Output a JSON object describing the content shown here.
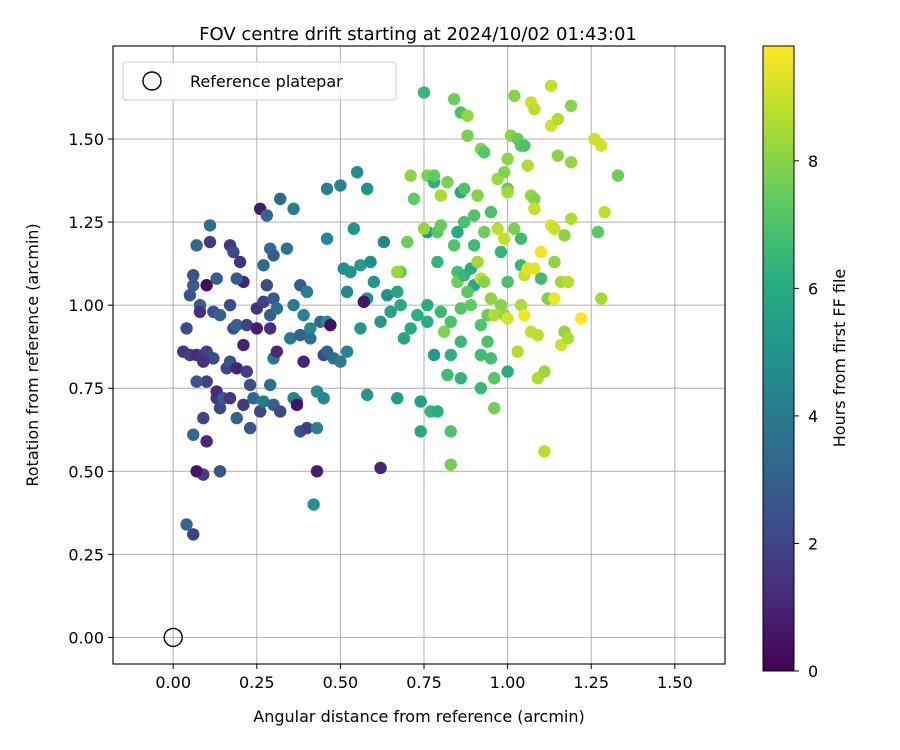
{
  "chart_data": {
    "type": "scatter",
    "title": "FOV centre drift starting at 2024/10/02 01:43:01",
    "xlabel": "Angular distance from reference (arcmin)",
    "ylabel": "Rotation from reference (arcmin)",
    "xlim": [
      -0.18,
      1.65
    ],
    "ylim": [
      -0.08,
      1.78
    ],
    "xticks": [
      "0.00",
      "0.25",
      "0.50",
      "0.75",
      "1.00",
      "1.25",
      "1.50"
    ],
    "yticks": [
      "0.00",
      "0.25",
      "0.50",
      "0.75",
      "1.00",
      "1.25",
      "1.50"
    ],
    "grid": true,
    "legend": {
      "position": "top-left",
      "label": "Reference platepar"
    },
    "reference_point": [
      0,
      0
    ],
    "colorbar": {
      "label": "Hours from first FF file",
      "colormap": "viridis",
      "range": [
        0,
        9.8
      ],
      "ticks": [
        "0",
        "2",
        "4",
        "6",
        "8"
      ]
    },
    "points": [
      [
        0.03,
        0.86,
        1.6
      ],
      [
        0.05,
        0.85,
        1.8
      ],
      [
        0.04,
        0.93,
        2.2
      ],
      [
        0.07,
        0.85,
        1.2
      ],
      [
        0.09,
        0.85,
        1.5
      ],
      [
        0.1,
        0.86,
        2.0
      ],
      [
        0.12,
        0.84,
        2.3
      ],
      [
        0.05,
        1.03,
        2.6
      ],
      [
        0.06,
        1.06,
        2.8
      ],
      [
        0.06,
        1.09,
        2.5
      ],
      [
        0.08,
        1.0,
        3.0
      ],
      [
        0.07,
        1.18,
        3.2
      ],
      [
        0.08,
        0.98,
        1.3
      ],
      [
        0.1,
        1.06,
        0.3
      ],
      [
        0.11,
        1.19,
        1.7
      ],
      [
        0.11,
        1.24,
        3.5
      ],
      [
        0.13,
        1.08,
        2.9
      ],
      [
        0.12,
        0.98,
        2.4
      ],
      [
        0.14,
        0.97,
        3.1
      ],
      [
        0.09,
        0.83,
        1.4
      ],
      [
        0.1,
        0.77,
        1.9
      ],
      [
        0.07,
        0.77,
        2.7
      ],
      [
        0.06,
        0.61,
        3.3
      ],
      [
        0.09,
        0.66,
        2.0
      ],
      [
        0.09,
        0.49,
        1.8
      ],
      [
        0.07,
        0.5,
        0.6
      ],
      [
        0.1,
        0.59,
        1.1
      ],
      [
        0.13,
        0.72,
        1.6
      ],
      [
        0.14,
        0.69,
        2.2
      ],
      [
        0.13,
        0.74,
        1.2
      ],
      [
        0.14,
        0.5,
        2.6
      ],
      [
        0.04,
        0.34,
        3.2
      ],
      [
        0.06,
        0.31,
        1.9
      ],
      [
        0.16,
        0.81,
        2.1
      ],
      [
        0.17,
        0.83,
        2.5
      ],
      [
        0.15,
        0.72,
        2.8
      ],
      [
        0.19,
        0.66,
        3.1
      ],
      [
        0.17,
        0.72,
        1.5
      ],
      [
        0.19,
        0.81,
        1.0
      ],
      [
        0.18,
        0.93,
        2.4
      ],
      [
        0.21,
        0.88,
        0.9
      ],
      [
        0.19,
        0.94,
        3.0
      ],
      [
        0.17,
        1.18,
        1.6
      ],
      [
        0.18,
        1.16,
        2.2
      ],
      [
        0.2,
        1.13,
        1.4
      ],
      [
        0.21,
        1.07,
        1.0
      ],
      [
        0.17,
        1.0,
        2.3
      ],
      [
        0.19,
        1.08,
        2.8
      ],
      [
        0.22,
        0.94,
        2.0
      ],
      [
        0.21,
        0.7,
        1.7
      ],
      [
        0.23,
        0.76,
        2.4
      ],
      [
        0.23,
        0.63,
        2.6
      ],
      [
        0.24,
        0.72,
        3.3
      ],
      [
        0.22,
        0.8,
        1.8
      ],
      [
        0.26,
        0.68,
        2.1
      ],
      [
        0.25,
        0.93,
        0.8
      ],
      [
        0.25,
        0.99,
        1.4
      ],
      [
        0.27,
        1.01,
        1.9
      ],
      [
        0.26,
        1.29,
        0.7
      ],
      [
        0.28,
        1.27,
        3.2
      ],
      [
        0.27,
        1.12,
        3.4
      ],
      [
        0.29,
        1.17,
        3.6
      ],
      [
        0.3,
        1.15,
        2.9
      ],
      [
        0.28,
        1.06,
        2.3
      ],
      [
        0.3,
        1.02,
        2.7
      ],
      [
        0.29,
        0.97,
        3.0
      ],
      [
        0.29,
        0.93,
        1.3
      ],
      [
        0.31,
        0.99,
        3.5
      ],
      [
        0.3,
        0.84,
        3.8
      ],
      [
        0.31,
        0.86,
        1.1
      ],
      [
        0.29,
        0.76,
        3.6
      ],
      [
        0.27,
        0.71,
        4.0
      ],
      [
        0.3,
        0.7,
        3.1
      ],
      [
        0.32,
        0.68,
        2.2
      ],
      [
        0.32,
        1.32,
        3.4
      ],
      [
        0.34,
        1.17,
        3.8
      ],
      [
        0.36,
        1.29,
        4.2
      ],
      [
        0.35,
        0.9,
        3.9
      ],
      [
        0.38,
        1.06,
        2.8
      ],
      [
        0.36,
        1.0,
        4.1
      ],
      [
        0.38,
        0.91,
        3.0
      ],
      [
        0.39,
        0.97,
        4.4
      ],
      [
        0.37,
        0.71,
        3.5
      ],
      [
        0.36,
        0.72,
        4.3
      ],
      [
        0.37,
        0.7,
        0.5
      ],
      [
        0.38,
        0.62,
        2.6
      ],
      [
        0.4,
        0.63,
        1.8
      ],
      [
        0.39,
        0.83,
        1.0
      ],
      [
        0.41,
        0.93,
        4.6
      ],
      [
        0.4,
        1.04,
        4.2
      ],
      [
        0.41,
        0.9,
        3.7
      ],
      [
        0.43,
        0.63,
        4.3
      ],
      [
        0.43,
        0.74,
        4.7
      ],
      [
        0.45,
        0.72,
        4.5
      ],
      [
        0.42,
        0.4,
        5.0
      ],
      [
        0.43,
        0.5,
        0.8
      ],
      [
        0.44,
        0.95,
        3.3
      ],
      [
        0.45,
        0.85,
        2.2
      ],
      [
        0.46,
        0.86,
        3.0
      ],
      [
        0.46,
        0.95,
        4.8
      ],
      [
        0.47,
        0.94,
        0.4
      ],
      [
        0.46,
        1.2,
        4.6
      ],
      [
        0.46,
        1.35,
        4.3
      ],
      [
        0.48,
        0.84,
        3.6
      ],
      [
        0.5,
        0.83,
        4.0
      ],
      [
        0.51,
        1.11,
        4.8
      ],
      [
        0.5,
        1.36,
        4.4
      ],
      [
        0.52,
        1.04,
        4.6
      ],
      [
        0.53,
        1.1,
        5.0
      ],
      [
        0.52,
        0.86,
        4.5
      ],
      [
        0.54,
        1.23,
        5.0
      ],
      [
        0.55,
        1.4,
        4.7
      ],
      [
        0.56,
        0.93,
        5.2
      ],
      [
        0.56,
        1.12,
        5.4
      ],
      [
        0.58,
        1.35,
        4.9
      ],
      [
        0.58,
        1.02,
        5.0
      ],
      [
        0.59,
        1.13,
        4.8
      ],
      [
        0.6,
        1.07,
        5.1
      ],
      [
        0.58,
        0.73,
        5.2
      ],
      [
        0.57,
        1.01,
        0.6
      ],
      [
        0.62,
        0.51,
        1.0
      ],
      [
        0.62,
        0.95,
        5.3
      ],
      [
        0.63,
        1.19,
        4.5
      ],
      [
        0.64,
        1.03,
        5.0
      ],
      [
        0.65,
        0.98,
        5.6
      ],
      [
        0.67,
        0.72,
        5.4
      ],
      [
        0.67,
        1.04,
        5.8
      ],
      [
        0.68,
        1.0,
        6.0
      ],
      [
        0.68,
        1.1,
        7.3
      ],
      [
        0.69,
        0.9,
        5.7
      ],
      [
        0.7,
        1.19,
        7.6
      ],
      [
        0.71,
        0.93,
        5.9
      ],
      [
        0.72,
        1.32,
        7.4
      ],
      [
        0.73,
        0.97,
        6.2
      ],
      [
        0.74,
        0.62,
        5.9
      ],
      [
        0.74,
        0.71,
        5.5
      ],
      [
        0.75,
        1.64,
        6.5
      ],
      [
        0.76,
        1.0,
        6.0
      ],
      [
        0.76,
        1.22,
        5.1
      ],
      [
        0.76,
        0.95,
        6.1
      ],
      [
        0.76,
        1.39,
        7.8
      ],
      [
        0.77,
        0.68,
        6.5
      ],
      [
        0.78,
        0.85,
        5.3
      ],
      [
        0.78,
        1.37,
        6.3
      ],
      [
        0.79,
        0.68,
        6.0
      ],
      [
        0.79,
        1.13,
        6.4
      ],
      [
        0.78,
        1.39,
        7.4
      ],
      [
        0.79,
        1.22,
        7.2
      ],
      [
        0.8,
        0.98,
        6.6
      ],
      [
        0.8,
        1.24,
        7.5
      ],
      [
        0.81,
        0.92,
        7.9
      ],
      [
        0.82,
        1.37,
        7.8
      ],
      [
        0.82,
        0.79,
        6.7
      ],
      [
        0.83,
        0.95,
        7.0
      ],
      [
        0.83,
        0.85,
        6.2
      ],
      [
        0.83,
        0.62,
        7.0
      ],
      [
        0.83,
        0.52,
        7.7
      ],
      [
        0.84,
        1.62,
        7.6
      ],
      [
        0.85,
        1.22,
        6.1
      ],
      [
        0.85,
        1.1,
        6.8
      ],
      [
        0.85,
        1.07,
        7.6
      ],
      [
        0.86,
        1.34,
        5.8
      ],
      [
        0.86,
        0.99,
        7.2
      ],
      [
        0.86,
        0.89,
        6.6
      ],
      [
        0.86,
        0.78,
        6.4
      ],
      [
        0.86,
        1.58,
        6.8
      ],
      [
        0.87,
        1.35,
        7.0
      ],
      [
        0.87,
        1.25,
        6.9
      ],
      [
        0.87,
        1.09,
        6.5
      ],
      [
        0.88,
        1.57,
        8.2
      ],
      [
        0.88,
        1.51,
        7.8
      ],
      [
        0.89,
        1.11,
        6.0
      ],
      [
        0.89,
        1.0,
        7.4
      ],
      [
        0.9,
        1.27,
        7.1
      ],
      [
        0.9,
        1.18,
        6.7
      ],
      [
        0.9,
        1.06,
        5.9
      ],
      [
        0.91,
        1.33,
        7.5
      ],
      [
        0.91,
        1.13,
        8.4
      ],
      [
        0.92,
        0.94,
        7.1
      ],
      [
        0.92,
        0.85,
        6.7
      ],
      [
        0.92,
        0.75,
        6.6
      ],
      [
        0.92,
        1.08,
        8.9
      ],
      [
        0.92,
        1.47,
        7.9
      ],
      [
        0.93,
        1.46,
        7.2
      ],
      [
        0.93,
        1.22,
        7.6
      ],
      [
        0.93,
        1.07,
        8.0
      ],
      [
        0.94,
        0.97,
        7.5
      ],
      [
        0.94,
        0.89,
        7.0
      ],
      [
        0.95,
        1.28,
        6.9
      ],
      [
        0.95,
        1.02,
        8.1
      ],
      [
        0.95,
        0.84,
        6.8
      ],
      [
        0.96,
        0.78,
        7.2
      ],
      [
        0.96,
        0.69,
        7.7
      ],
      [
        0.96,
        0.97,
        8.6
      ],
      [
        0.97,
        1.38,
        8.3
      ],
      [
        0.97,
        1.23,
        8.8
      ],
      [
        0.98,
        1.16,
        6.4
      ],
      [
        0.98,
        1.0,
        8.0
      ],
      [
        0.99,
        1.4,
        7.9
      ],
      [
        0.99,
        1.2,
        8.9
      ],
      [
        0.99,
        0.97,
        8.2
      ],
      [
        1.0,
        1.35,
        7.3
      ],
      [
        1.0,
        1.44,
        8.1
      ],
      [
        1.0,
        1.34,
        8.4
      ],
      [
        1.0,
        1.07,
        6.9
      ],
      [
        1.0,
        0.8,
        6.1
      ],
      [
        1.0,
        0.96,
        9.2
      ],
      [
        1.01,
        1.51,
        8.0
      ],
      [
        1.02,
        1.23,
        7.8
      ],
      [
        1.02,
        1.63,
        8.0
      ],
      [
        1.03,
        1.5,
        7.6
      ],
      [
        1.03,
        0.86,
        8.7
      ],
      [
        1.04,
        1.48,
        7.3
      ],
      [
        1.04,
        1.2,
        6.7
      ],
      [
        1.04,
        1.12,
        6.5
      ],
      [
        1.04,
        1.0,
        8.5
      ],
      [
        1.05,
        0.97,
        9.6
      ],
      [
        1.05,
        1.09,
        9.0
      ],
      [
        1.05,
        1.48,
        7.0
      ],
      [
        1.06,
        1.42,
        8.6
      ],
      [
        1.06,
        1.11,
        9.3
      ],
      [
        1.07,
        1.33,
        8.2
      ],
      [
        1.07,
        1.61,
        9.1
      ],
      [
        1.07,
        0.92,
        8.9
      ],
      [
        1.08,
        1.32,
        7.9
      ],
      [
        1.08,
        1.59,
        8.8
      ],
      [
        1.08,
        1.11,
        9.4
      ],
      [
        1.08,
        1.29,
        9.0
      ],
      [
        1.09,
        0.91,
        8.8
      ],
      [
        1.09,
        0.78,
        8.6
      ],
      [
        1.1,
        1.16,
        9.6
      ],
      [
        1.1,
        1.08,
        6.7
      ],
      [
        1.11,
        0.56,
        8.8
      ],
      [
        1.11,
        0.8,
        8.3
      ],
      [
        1.12,
        1.02,
        7.8
      ],
      [
        1.13,
        1.66,
        8.9
      ],
      [
        1.13,
        1.54,
        9.1
      ],
      [
        1.13,
        1.24,
        9.3
      ],
      [
        1.14,
        1.23,
        9.0
      ],
      [
        1.14,
        1.02,
        9.6
      ],
      [
        1.14,
        1.13,
        8.1
      ],
      [
        1.15,
        1.45,
        8.0
      ],
      [
        1.15,
        1.56,
        8.7
      ],
      [
        1.16,
        1.07,
        8.4
      ],
      [
        1.16,
        0.88,
        9.1
      ],
      [
        1.17,
        1.21,
        8.0
      ],
      [
        1.17,
        0.92,
        8.2
      ],
      [
        1.18,
        1.07,
        8.7
      ],
      [
        1.18,
        0.9,
        8.5
      ],
      [
        1.19,
        1.26,
        8.6
      ],
      [
        1.19,
        1.43,
        8.2
      ],
      [
        1.19,
        1.6,
        8.0
      ],
      [
        1.22,
        0.96,
        9.8
      ],
      [
        1.27,
        1.22,
        7.3
      ],
      [
        1.28,
        1.48,
        9.2
      ],
      [
        1.28,
        1.02,
        8.4
      ],
      [
        1.29,
        1.28,
        8.9
      ],
      [
        1.33,
        1.39,
        7.6
      ],
      [
        1.26,
        1.5,
        9.0
      ],
      [
        0.71,
        1.39,
        8.1
      ],
      [
        0.67,
        1.1,
        8.3
      ],
      [
        0.75,
        1.23,
        8.2
      ],
      [
        0.8,
        1.33,
        8.5
      ],
      [
        0.84,
        1.18,
        7.0
      ],
      [
        0.88,
        1.04,
        7.3
      ],
      [
        0.91,
        1.33,
        8.0
      ]
    ]
  }
}
